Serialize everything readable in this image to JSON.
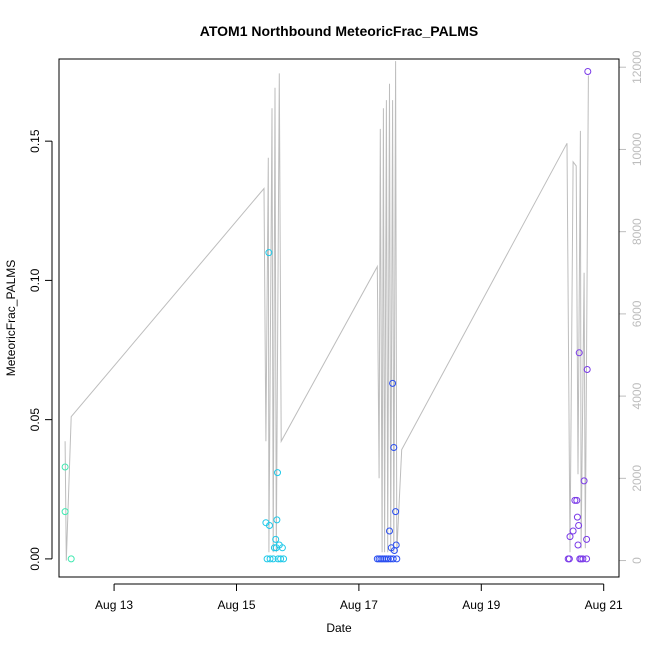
{
  "chart_data": {
    "type": "scatter",
    "title": "ATOM1 Northbound MeteoricFrac_PALMS",
    "xlabel": "Date",
    "ylabel": "MeteoricFrac_PALMS",
    "x_unit": "days (August)",
    "xlim": [
      12.1,
      21.25
    ],
    "ylim": [
      -0.0065,
      0.1795
    ],
    "x_ticks": [
      13,
      15,
      17,
      19,
      21
    ],
    "x_tick_labels": [
      "Aug 13",
      "Aug 15",
      "Aug 17",
      "Aug 19",
      "Aug 21"
    ],
    "y_ticks": [
      0.0,
      0.05,
      0.1,
      0.15
    ],
    "y_tick_labels": [
      "0.00",
      "0.05",
      "0.10",
      "0.15"
    ],
    "y2_lim": [
      -400,
      12200
    ],
    "y2_ticks": [
      0,
      2000,
      4000,
      6000,
      8000,
      10000,
      12000
    ],
    "y2_tick_labels": [
      "0",
      "2000",
      "4000",
      "6000",
      "8000",
      "10000",
      "12000"
    ],
    "grid": false,
    "points": [
      {
        "x": 12.2,
        "y": 0.033,
        "color": "#3fe8b0"
      },
      {
        "x": 12.2,
        "y": 0.017,
        "color": "#3fe8b0"
      },
      {
        "x": 12.3,
        "y": 0.0,
        "color": "#3fe8b0"
      },
      {
        "x": 15.48,
        "y": 0.013,
        "color": "#1ec8e8"
      },
      {
        "x": 15.53,
        "y": 0.11,
        "color": "#1ec8e8"
      },
      {
        "x": 15.54,
        "y": 0.012,
        "color": "#1ec8e8"
      },
      {
        "x": 15.5,
        "y": 0.0,
        "color": "#1ec8e8"
      },
      {
        "x": 15.55,
        "y": 0.0,
        "color": "#1ec8e8"
      },
      {
        "x": 15.6,
        "y": 0.0,
        "color": "#1ec8e8"
      },
      {
        "x": 15.62,
        "y": 0.004,
        "color": "#1ec8e8"
      },
      {
        "x": 15.64,
        "y": 0.007,
        "color": "#1ec8e8"
      },
      {
        "x": 15.65,
        "y": 0.004,
        "color": "#1ec8e8"
      },
      {
        "x": 15.66,
        "y": 0.014,
        "color": "#1ec8e8"
      },
      {
        "x": 15.67,
        "y": 0.031,
        "color": "#1ec8e8"
      },
      {
        "x": 15.68,
        "y": 0.0,
        "color": "#1ec8e8"
      },
      {
        "x": 15.7,
        "y": 0.005,
        "color": "#1ec8e8"
      },
      {
        "x": 15.72,
        "y": 0.0,
        "color": "#1ec8e8"
      },
      {
        "x": 15.75,
        "y": 0.004,
        "color": "#1ec8e8"
      },
      {
        "x": 15.77,
        "y": 0.0,
        "color": "#1ec8e8"
      },
      {
        "x": 17.3,
        "y": 0.0,
        "color": "#2a4ef0"
      },
      {
        "x": 17.33,
        "y": 0.0,
        "color": "#2a4ef0"
      },
      {
        "x": 17.36,
        "y": 0.0,
        "color": "#2a4ef0"
      },
      {
        "x": 17.39,
        "y": 0.0,
        "color": "#2a4ef0"
      },
      {
        "x": 17.42,
        "y": 0.0,
        "color": "#2a4ef0"
      },
      {
        "x": 17.45,
        "y": 0.0,
        "color": "#2a4ef0"
      },
      {
        "x": 17.48,
        "y": 0.0,
        "color": "#2a4ef0"
      },
      {
        "x": 17.5,
        "y": 0.01,
        "color": "#2a4ef0"
      },
      {
        "x": 17.52,
        "y": 0.0,
        "color": "#2a4ef0"
      },
      {
        "x": 17.53,
        "y": 0.004,
        "color": "#2a4ef0"
      },
      {
        "x": 17.55,
        "y": 0.063,
        "color": "#2a4ef0"
      },
      {
        "x": 17.56,
        "y": 0.0,
        "color": "#2a4ef0"
      },
      {
        "x": 17.57,
        "y": 0.04,
        "color": "#2a4ef0"
      },
      {
        "x": 17.58,
        "y": 0.003,
        "color": "#2a4ef0"
      },
      {
        "x": 17.6,
        "y": 0.017,
        "color": "#2a4ef0"
      },
      {
        "x": 17.61,
        "y": 0.005,
        "color": "#2a4ef0"
      },
      {
        "x": 17.62,
        "y": 0.0,
        "color": "#2a4ef0"
      },
      {
        "x": 20.42,
        "y": 0.0,
        "color": "#7a3ae8"
      },
      {
        "x": 20.44,
        "y": 0.0,
        "color": "#7a3ae8"
      },
      {
        "x": 20.45,
        "y": 0.008,
        "color": "#7a3ae8"
      },
      {
        "x": 20.5,
        "y": 0.01,
        "color": "#7a3ae8"
      },
      {
        "x": 20.53,
        "y": 0.021,
        "color": "#7a3ae8"
      },
      {
        "x": 20.56,
        "y": 0.021,
        "color": "#7a3ae8"
      },
      {
        "x": 20.57,
        "y": 0.015,
        "color": "#7a3ae8"
      },
      {
        "x": 20.58,
        "y": 0.005,
        "color": "#7a3ae8"
      },
      {
        "x": 20.59,
        "y": 0.012,
        "color": "#7a3ae8"
      },
      {
        "x": 20.6,
        "y": 0.074,
        "color": "#7a3ae8"
      },
      {
        "x": 20.61,
        "y": 0.0,
        "color": "#7a3ae8"
      },
      {
        "x": 20.63,
        "y": 0.0,
        "color": "#7a3ae8"
      },
      {
        "x": 20.66,
        "y": 0.0,
        "color": "#7a3ae8"
      },
      {
        "x": 20.68,
        "y": 0.028,
        "color": "#7a3ae8"
      },
      {
        "x": 20.72,
        "y": 0.0,
        "color": "#7a3ae8"
      },
      {
        "x": 20.72,
        "y": 0.007,
        "color": "#7a3ae8"
      },
      {
        "x": 20.73,
        "y": 0.068,
        "color": "#7a3ae8"
      },
      {
        "x": 20.74,
        "y": 0.175,
        "color": "#7a3ae8"
      }
    ],
    "line_color": "#bdbdbd",
    "line_y2": [
      [
        12.2,
        2900
      ],
      [
        12.22,
        0
      ],
      [
        12.3,
        3500
      ],
      [
        15.45,
        9050
      ],
      [
        15.48,
        2900
      ],
      [
        15.52,
        9800
      ],
      [
        15.53,
        200
      ],
      [
        15.58,
        11000
      ],
      [
        15.6,
        200
      ],
      [
        15.63,
        11500
      ],
      [
        15.65,
        200
      ],
      [
        15.7,
        11850
      ],
      [
        15.73,
        2900
      ],
      [
        17.3,
        7150
      ],
      [
        17.33,
        2000
      ],
      [
        17.35,
        10500
      ],
      [
        17.38,
        200
      ],
      [
        17.4,
        11000
      ],
      [
        17.42,
        200
      ],
      [
        17.45,
        11200
      ],
      [
        17.47,
        200
      ],
      [
        17.5,
        11600
      ],
      [
        17.52,
        200
      ],
      [
        17.55,
        11200
      ],
      [
        17.57,
        200
      ],
      [
        17.6,
        12150
      ],
      [
        17.62,
        200
      ],
      [
        17.7,
        2700
      ],
      [
        20.4,
        10150
      ],
      [
        20.45,
        200
      ],
      [
        20.5,
        9700
      ],
      [
        20.55,
        9600
      ],
      [
        20.58,
        2100
      ],
      [
        20.62,
        10450
      ],
      [
        20.63,
        300
      ],
      [
        20.68,
        7000
      ],
      [
        20.7,
        300
      ],
      [
        20.75,
        11800
      ]
    ]
  }
}
